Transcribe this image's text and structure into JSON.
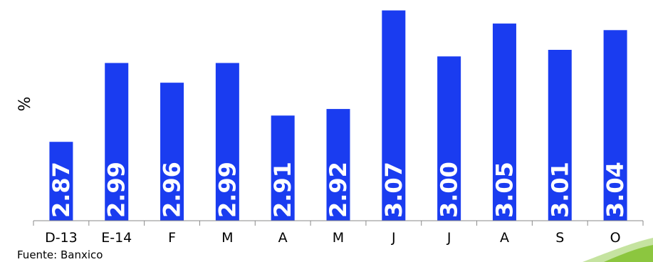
{
  "chart_data": {
    "type": "bar",
    "categories": [
      "D-13",
      "E-14",
      "F",
      "M",
      "A",
      "M",
      "J",
      "J",
      "A",
      "S",
      "O"
    ],
    "values": [
      2.87,
      2.99,
      2.96,
      2.99,
      2.91,
      2.92,
      3.07,
      3.0,
      3.05,
      3.01,
      3.04
    ],
    "value_labels": [
      "2.87",
      "2.99",
      "2.96",
      "2.99",
      "2.91",
      "2.92",
      "3.07",
      "3.00",
      "3.05",
      "3.01",
      "3.04"
    ],
    "ylabel": "%",
    "ylim": [
      2.75,
      3.075
    ],
    "grid": false,
    "bar_color": "#1a3cf0"
  },
  "source": "Fuente: Banxico",
  "colors": {
    "accent_green": "#8cc63f",
    "accent_green_light": "#c5e3a0"
  }
}
